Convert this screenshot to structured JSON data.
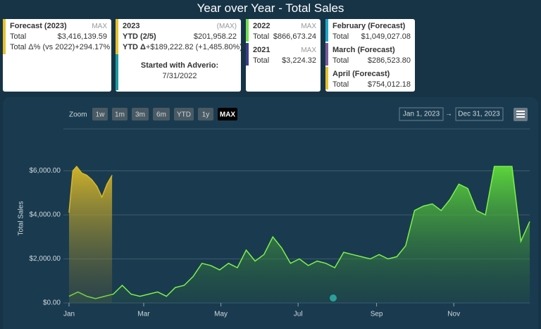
{
  "header": {
    "title": "Year over Year - Total Sales"
  },
  "cards": [
    {
      "heading": "Forecast (2023)",
      "scope": "MAX",
      "rows": [
        {
          "label": "Total",
          "value": "$3,416,139.59"
        },
        {
          "label": "Total Δ% (vs 2022)",
          "value": "+294.17%"
        }
      ]
    },
    {
      "heading": "2023",
      "scope": "(MAX)",
      "rows": [
        {
          "label": "YTD (2/5)",
          "value": "$201,958.22"
        },
        {
          "label": "YTD Δ",
          "value": "+$189,222.82 (+1,485.80%)"
        }
      ],
      "note": {
        "heading": "Started with Adverio:",
        "date": "7/31/2022"
      }
    },
    {
      "blocks": [
        {
          "heading": "2022",
          "scope": "MAX",
          "label": "Total",
          "value": "$866,673.24"
        },
        {
          "heading": "2021",
          "scope": "MAX",
          "label": "Total",
          "value": "$3,224.32"
        }
      ]
    },
    {
      "blocks": [
        {
          "heading": "February (Forecast)",
          "label": "Total",
          "value": "$1,049,027.08"
        },
        {
          "heading": "March (Forecast)",
          "label": "Total",
          "value": "$286,523.80"
        },
        {
          "heading": "April (Forecast)",
          "label": "Total",
          "value": "$754,012.18"
        }
      ]
    }
  ],
  "controls": {
    "zoom_label": "Zoom",
    "buttons": [
      "1w",
      "1m",
      "3m",
      "6m",
      "YTD",
      "1y",
      "MAX"
    ],
    "selected": "MAX",
    "range_from": "Jan 1, 2023",
    "range_arrow": "→",
    "range_to": "Dec 31, 2023"
  },
  "chart_data": {
    "type": "area",
    "y_label": "Total Sales",
    "xlim": [
      "2023-01-01",
      "2023-12-31"
    ],
    "xticks": [
      {
        "value": "2023-01-01",
        "label": "Jan"
      },
      {
        "value": "2023-03-01",
        "label": "Mar"
      },
      {
        "value": "2023-05-01",
        "label": "May"
      },
      {
        "value": "2023-07-01",
        "label": "Jul"
      },
      {
        "value": "2023-09-01",
        "label": "Sep"
      },
      {
        "value": "2023-11-01",
        "label": "Nov"
      }
    ],
    "ylim": [
      0,
      8000
    ],
    "yticks": [
      {
        "value": 0,
        "label": "$0.00"
      },
      {
        "value": 2000,
        "label": "$2,000.00"
      },
      {
        "value": 4000,
        "label": "$4,000.00"
      },
      {
        "value": 6000,
        "label": "$6,000.00"
      }
    ],
    "grid": true,
    "series": [
      {
        "color": "#7cf24a",
        "x": [
          "2023-01-01",
          "2023-01-08",
          "2023-01-15",
          "2023-01-22",
          "2023-01-29",
          "2023-02-05",
          "2023-02-12",
          "2023-02-19",
          "2023-02-26",
          "2023-03-05",
          "2023-03-12",
          "2023-03-19",
          "2023-03-26",
          "2023-04-02",
          "2023-04-09",
          "2023-04-16",
          "2023-04-23",
          "2023-04-30",
          "2023-05-07",
          "2023-05-14",
          "2023-05-21",
          "2023-05-28",
          "2023-06-04",
          "2023-06-11",
          "2023-06-18",
          "2023-06-25",
          "2023-07-02",
          "2023-07-09",
          "2023-07-16",
          "2023-07-23",
          "2023-07-30",
          "2023-08-06",
          "2023-08-13",
          "2023-08-20",
          "2023-08-27",
          "2023-09-03",
          "2023-09-10",
          "2023-09-17",
          "2023-09-24",
          "2023-10-01",
          "2023-10-08",
          "2023-10-15",
          "2023-10-22",
          "2023-10-29",
          "2023-11-05",
          "2023-11-12",
          "2023-11-19",
          "2023-11-26",
          "2023-12-03",
          "2023-12-10",
          "2023-12-17",
          "2023-12-24",
          "2023-12-31"
        ],
        "values": [
          300,
          500,
          300,
          200,
          300,
          400,
          800,
          400,
          300,
          400,
          500,
          300,
          700,
          800,
          1200,
          1800,
          1700,
          1500,
          1800,
          1600,
          2400,
          1900,
          2200,
          3000,
          2500,
          1800,
          2000,
          1700,
          1900,
          1800,
          1600,
          2300,
          2200,
          2100,
          2000,
          2200,
          2000,
          2100,
          2600,
          4200,
          4400,
          4500,
          4200,
          4700,
          5400,
          5200,
          4200,
          4000,
          6200,
          6200,
          6200,
          2800,
          3700
        ]
      },
      {
        "color": "#d8b828",
        "x": [
          "2023-01-01",
          "2023-01-04",
          "2023-01-07",
          "2023-01-11",
          "2023-01-15",
          "2023-01-19",
          "2023-01-23",
          "2023-01-27",
          "2023-01-31",
          "2023-02-04"
        ],
        "values": [
          4100,
          6000,
          6200,
          5900,
          5800,
          5600,
          5300,
          4800,
          5400,
          5800
        ]
      }
    ]
  }
}
